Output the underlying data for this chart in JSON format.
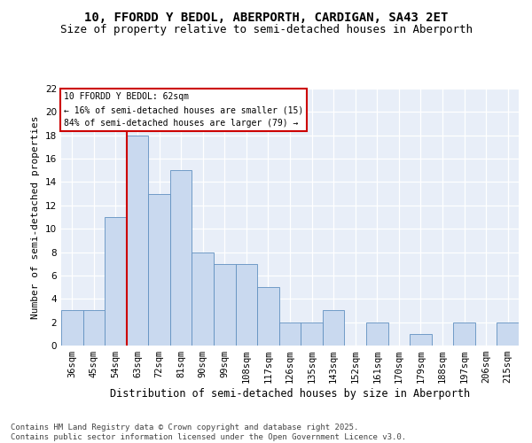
{
  "title1": "10, FFORDD Y BEDOL, ABERPORTH, CARDIGAN, SA43 2ET",
  "title2": "Size of property relative to semi-detached houses in Aberporth",
  "xlabel": "Distribution of semi-detached houses by size in Aberporth",
  "ylabel": "Number of semi-detached properties",
  "categories": [
    "36sqm",
    "45sqm",
    "54sqm",
    "63sqm",
    "72sqm",
    "81sqm",
    "90sqm",
    "99sqm",
    "108sqm",
    "117sqm",
    "126sqm",
    "135sqm",
    "143sqm",
    "152sqm",
    "161sqm",
    "170sqm",
    "179sqm",
    "188sqm",
    "197sqm",
    "206sqm",
    "215sqm"
  ],
  "values": [
    3,
    3,
    11,
    18,
    13,
    15,
    8,
    7,
    7,
    5,
    2,
    2,
    3,
    0,
    2,
    0,
    1,
    0,
    2,
    0,
    2
  ],
  "bar_color": "#c9d9ef",
  "bar_edge_color": "#6090c0",
  "vline_color": "#cc0000",
  "annotation_title": "10 FFORDD Y BEDOL: 62sqm",
  "annotation_line1": "← 16% of semi-detached houses are smaller (15)",
  "annotation_line2": "84% of semi-detached houses are larger (79) →",
  "annotation_box_color": "#cc0000",
  "ylim": [
    0,
    22
  ],
  "yticks": [
    0,
    2,
    4,
    6,
    8,
    10,
    12,
    14,
    16,
    18,
    20,
    22
  ],
  "footer": "Contains HM Land Registry data © Crown copyright and database right 2025.\nContains public sector information licensed under the Open Government Licence v3.0.",
  "bg_color": "#e8eef8",
  "title1_fontsize": 10,
  "title2_fontsize": 9,
  "xlabel_fontsize": 8.5,
  "ylabel_fontsize": 8,
  "footer_fontsize": 6.5,
  "tick_fontsize": 7.5,
  "annotation_fontsize": 7
}
